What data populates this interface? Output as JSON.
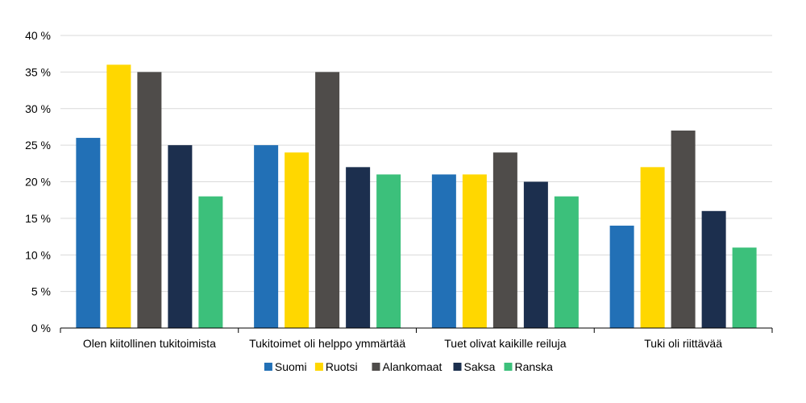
{
  "chart_data": {
    "type": "bar",
    "categories": [
      "Olen kiitollinen tukitoimista",
      "Tukitoimet oli helppo ymmärtää",
      "Tuet olivat kaikille reiluja",
      "Tuki oli riittävää"
    ],
    "series": [
      {
        "name": "Suomi",
        "color": "#2270b6",
        "values": [
          26,
          25,
          21,
          14
        ]
      },
      {
        "name": "Ruotsi",
        "color": "#ffd700",
        "values": [
          36,
          24,
          21,
          22
        ]
      },
      {
        "name": "Alankomaat",
        "color": "#4f4c4a",
        "values": [
          35,
          35,
          24,
          27
        ]
      },
      {
        "name": "Saksa",
        "color": "#1c2f4e",
        "values": [
          25,
          22,
          20,
          16
        ]
      },
      {
        "name": "Ranska",
        "color": "#3cc07b",
        "values": [
          18,
          21,
          18,
          11
        ]
      }
    ],
    "ylim": [
      0,
      40
    ],
    "yticks": [
      0,
      5,
      10,
      15,
      20,
      25,
      30,
      35,
      40
    ],
    "ytick_labels": [
      "0 %",
      "5 %",
      "10 %",
      "15 %",
      "20 %",
      "25 %",
      "30 %",
      "35 %",
      "40 %"
    ],
    "grid": true,
    "legend_position": "bottom"
  }
}
